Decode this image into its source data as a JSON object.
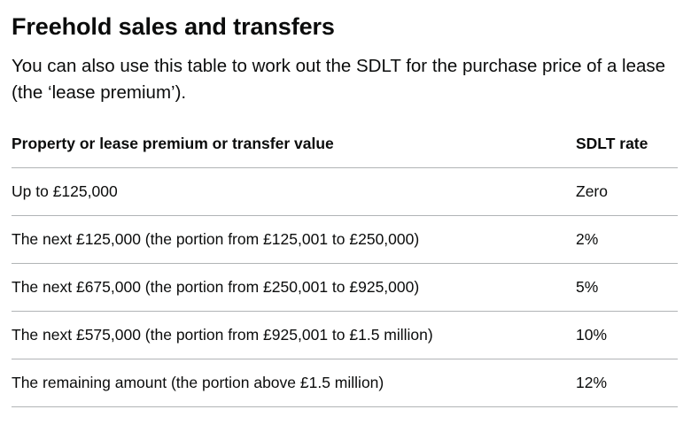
{
  "heading": "Freehold sales and transfers",
  "intro": "You can also use this table to work out the SDLT for the purchase price of a lease (the ‘lease premium’).",
  "table": {
    "headers": {
      "value": "Property or lease premium or transfer value",
      "rate": "SDLT rate"
    },
    "rows": [
      {
        "value": "Up to £125,000",
        "rate": "Zero"
      },
      {
        "value": "The next £125,000 (the portion from £125,001 to £250,000)",
        "rate": "2%"
      },
      {
        "value": "The next £675,000 (the portion from £250,001 to £925,000)",
        "rate": "5%"
      },
      {
        "value": "The next £575,000 (the portion from £925,001 to £1.5 million)",
        "rate": "10%"
      },
      {
        "value": "The remaining amount (the portion above £1.5 million)",
        "rate": "12%"
      }
    ]
  }
}
